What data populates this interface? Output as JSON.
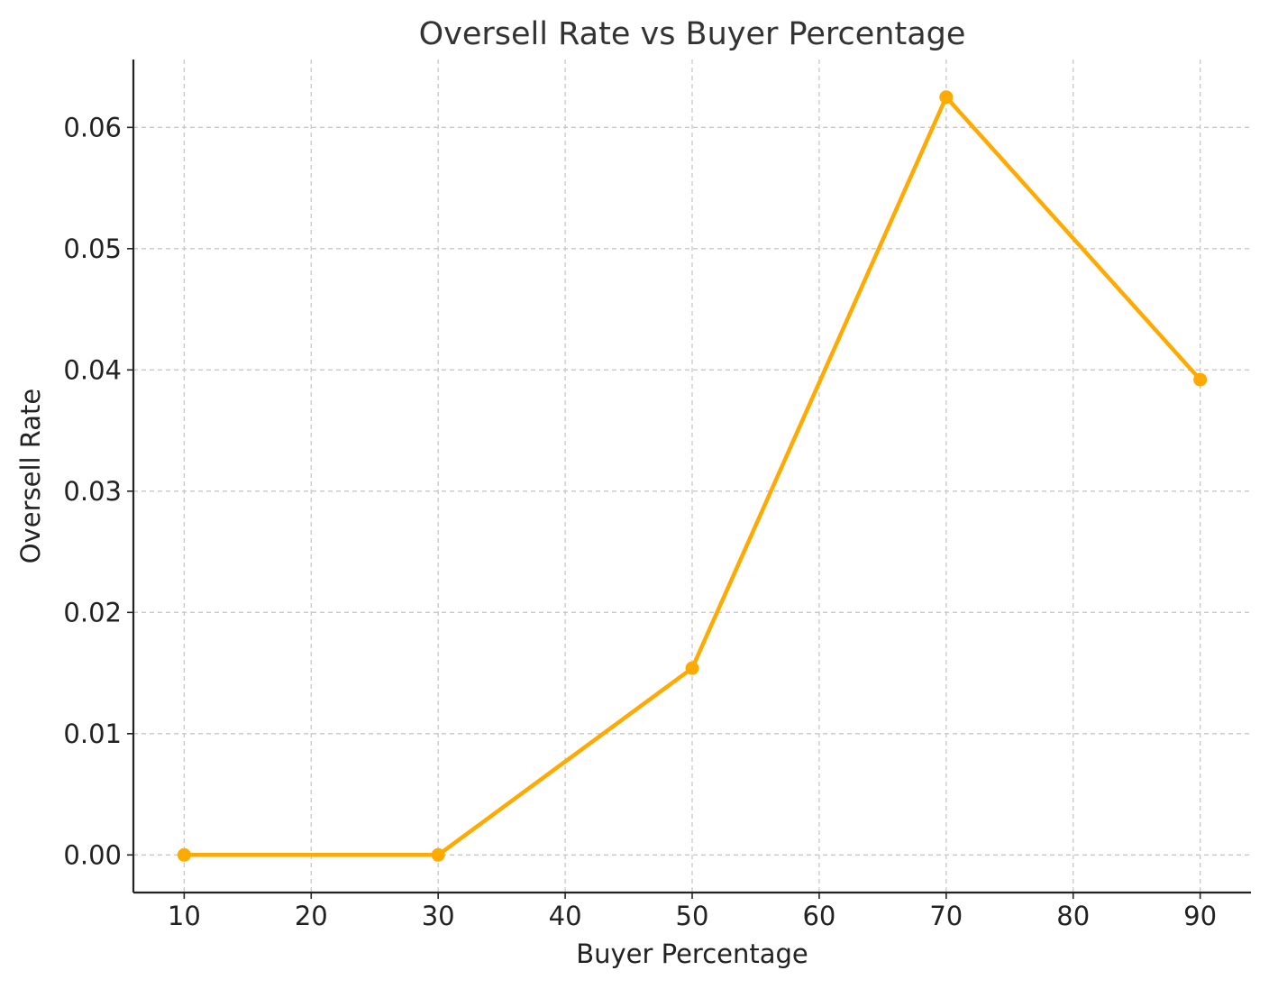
{
  "chart_data": {
    "type": "line",
    "title": "Oversell Rate vs Buyer Percentage",
    "xlabel": "Buyer Percentage",
    "ylabel": "Oversell Rate",
    "x": [
      10,
      30,
      50,
      70,
      90
    ],
    "series": [
      {
        "values": [
          0.0,
          0.0,
          0.0154,
          0.0625,
          0.0392
        ],
        "color": "#FFAA00"
      }
    ],
    "xticks": [
      10,
      20,
      30,
      40,
      50,
      60,
      70,
      80,
      90
    ],
    "xtick_labels": [
      "10",
      "20",
      "30",
      "40",
      "50",
      "60",
      "70",
      "80",
      "90"
    ],
    "yticks": [
      0.0,
      0.01,
      0.02,
      0.03,
      0.04,
      0.05,
      0.06
    ],
    "ytick_labels": [
      "0.00",
      "0.01",
      "0.02",
      "0.03",
      "0.04",
      "0.05",
      "0.06"
    ],
    "xlim": [
      6,
      94
    ],
    "ylim": [
      -0.0031,
      0.0656
    ],
    "grid": true,
    "marker": "circle"
  }
}
